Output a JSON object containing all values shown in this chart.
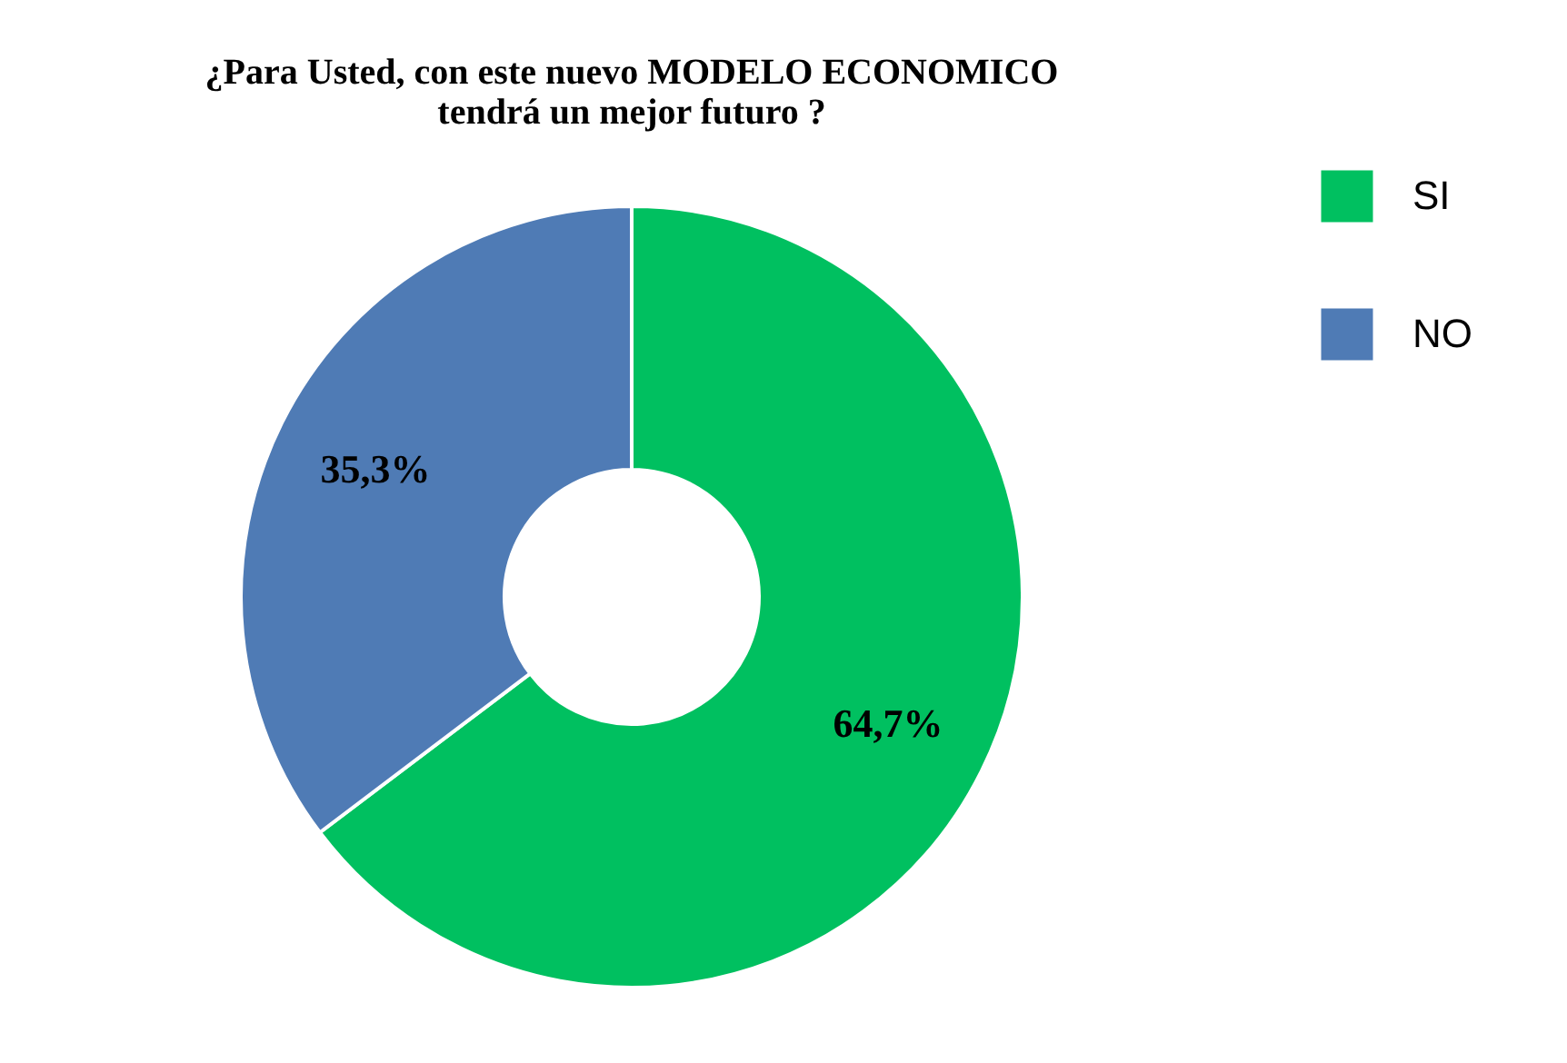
{
  "chart_data": {
    "type": "donut",
    "title": "¿Para Usted, con este nuevo MODELO ECONOMICO\ntendrá un mejor futuro ?",
    "categories": [
      "SI",
      "NO"
    ],
    "values": [
      64.7,
      35.3
    ],
    "value_labels": [
      "64,7%",
      "35,3%"
    ],
    "colors": [
      "#00c060",
      "#4f7bb5"
    ],
    "legend": "right"
  }
}
